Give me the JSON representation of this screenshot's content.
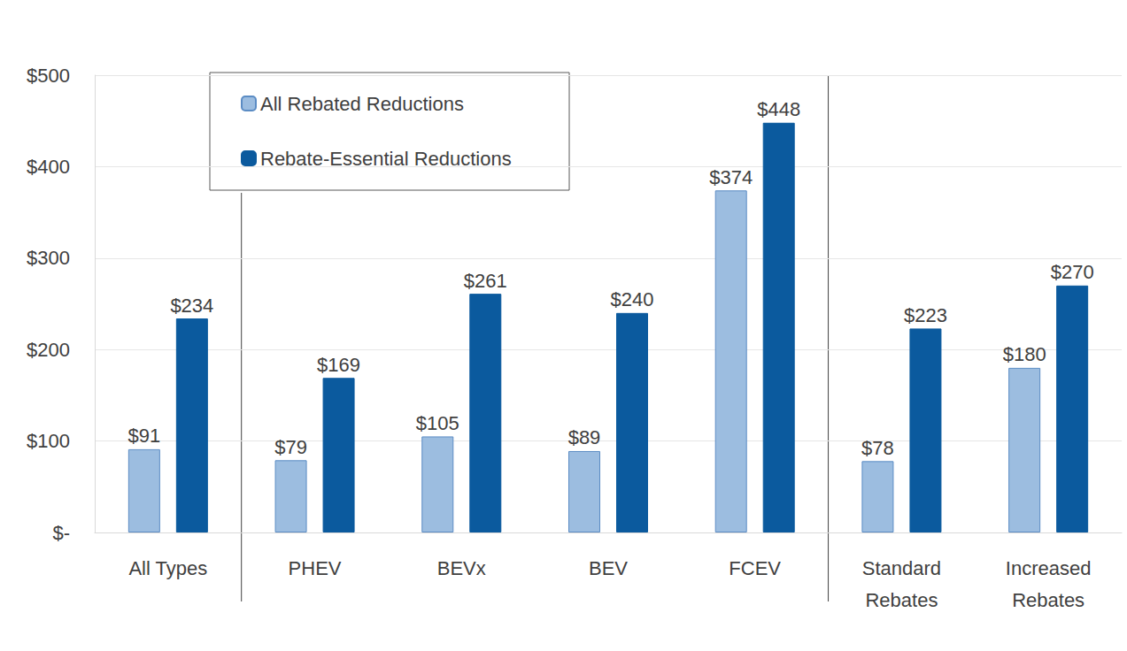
{
  "chart_data": {
    "type": "bar",
    "categories": [
      "All Types",
      "PHEV",
      "BEVx",
      "BEV",
      "FCEV",
      "Standard\nRebates",
      "Increased\nRebates"
    ],
    "series": [
      {
        "name": "All Rebated Reductions",
        "color": "#9cbde0",
        "values": [
          91,
          79,
          105,
          89,
          374,
          78,
          180
        ],
        "value_labels": [
          "$91",
          "$79",
          "$105",
          "$89",
          "$374",
          "$78",
          "$180"
        ]
      },
      {
        "name": "Rebate-Essential Reductions",
        "color": "#0b5a9e",
        "values": [
          234,
          169,
          261,
          240,
          448,
          223,
          270
        ],
        "value_labels": [
          "$234",
          "$169",
          "$261",
          "$240",
          "$448",
          "$223",
          "$270"
        ]
      }
    ],
    "ylim": [
      0,
      500
    ],
    "yticks": [
      {
        "value": 0,
        "label": "$-"
      },
      {
        "value": 100,
        "label": "$100"
      },
      {
        "value": 200,
        "label": "$200"
      },
      {
        "value": 300,
        "label": "$300"
      },
      {
        "value": 400,
        "label": "$400"
      },
      {
        "value": 500,
        "label": "$500"
      }
    ],
    "grid": true,
    "legend": "upper left",
    "data_labels": true
  }
}
